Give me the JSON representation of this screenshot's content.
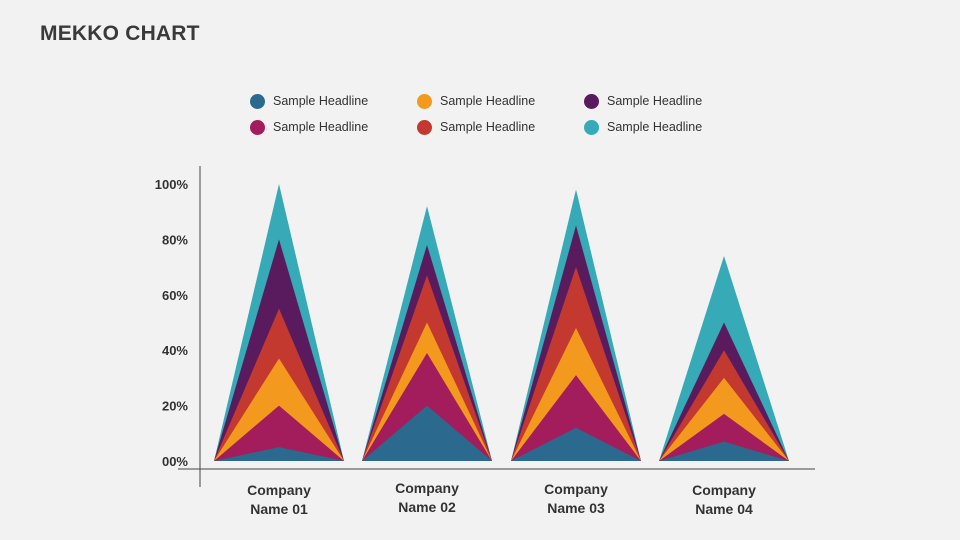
{
  "title": "MEKKO CHART",
  "legend": [
    {
      "label": "Sample Headline",
      "color": "#2b6a8e"
    },
    {
      "label": "Sample Headline",
      "color": "#f39a1e"
    },
    {
      "label": "Sample Headline",
      "color": "#5a1b5e"
    },
    {
      "label": "Sample Headline",
      "color": "#a31c5c"
    },
    {
      "label": "Sample Headline",
      "color": "#c4392f"
    },
    {
      "label": "Sample Headline",
      "color": "#36aab7"
    }
  ],
  "chart_data": {
    "type": "area",
    "title": "MEKKO CHART",
    "xlabel": "",
    "ylabel": "",
    "ylim": [
      0,
      100
    ],
    "y_ticks": [
      "00%",
      "20%",
      "40%",
      "60%",
      "80%",
      "100%"
    ],
    "categories": [
      {
        "line1": "Company",
        "line2": "Name 01"
      },
      {
        "line1": "Company",
        "line2": "Name 02"
      },
      {
        "line1": "Company",
        "line2": "Name 03"
      },
      {
        "line1": "Company",
        "line2": "Name 04"
      }
    ],
    "series": [
      {
        "color": "#2b6a8e",
        "values": [
          5,
          20,
          12,
          7
        ]
      },
      {
        "color": "#a31c5c",
        "values": [
          20,
          39,
          31,
          17
        ]
      },
      {
        "color": "#f39a1e",
        "values": [
          37,
          50,
          48,
          30
        ]
      },
      {
        "color": "#c4392f",
        "values": [
          55,
          67,
          70,
          40
        ]
      },
      {
        "color": "#5a1b5e",
        "values": [
          80,
          78,
          85,
          50
        ]
      },
      {
        "color": "#36aab7",
        "values": [
          100,
          92,
          98,
          74
        ]
      }
    ],
    "stacking": "cumulative",
    "grid": false
  }
}
